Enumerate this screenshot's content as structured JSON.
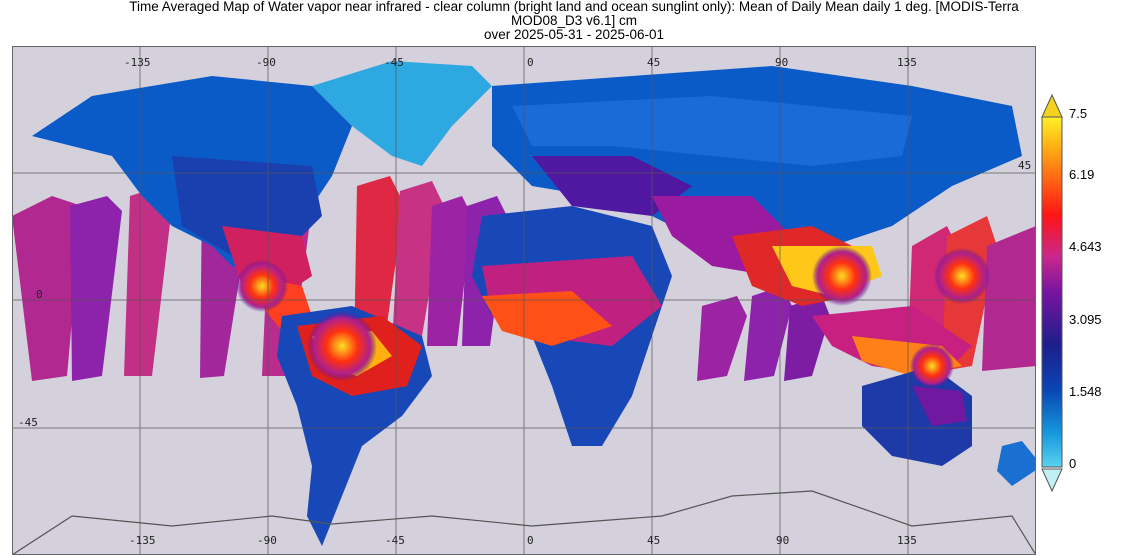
{
  "title": {
    "line1": "Time Averaged Map of Water vapor near infrared - clear column (bright land and ocean sunglint only): Mean of Daily Mean daily 1 deg. [MODIS-Terra",
    "line2": "MOD08_D3 v6.1] cm",
    "line3": "over 2025-05-31 - 2025-06-01"
  },
  "map": {
    "lon_ticks_top": [
      "-135",
      "-90",
      "-45",
      "0",
      "45",
      "90",
      "135"
    ],
    "lon_ticks_bottom": [
      "-135",
      "-90",
      "-45",
      "0",
      "45",
      "90",
      "135"
    ],
    "lat_ticks": [
      "45",
      "0",
      "-45"
    ],
    "background_color": "#d4d0dc",
    "grid": true
  },
  "colorbar": {
    "labels": [
      "7.5",
      "6.19",
      "4.643",
      "3.095",
      "1.548",
      "0"
    ],
    "min": 0,
    "max": 7.5,
    "colors": [
      "#5ad2f0",
      "#1496dc",
      "#0a46b4",
      "#1e1e8c",
      "#7814a0",
      "#c8288c",
      "#ff1414",
      "#ff6414",
      "#ffb414",
      "#fff028"
    ]
  }
}
